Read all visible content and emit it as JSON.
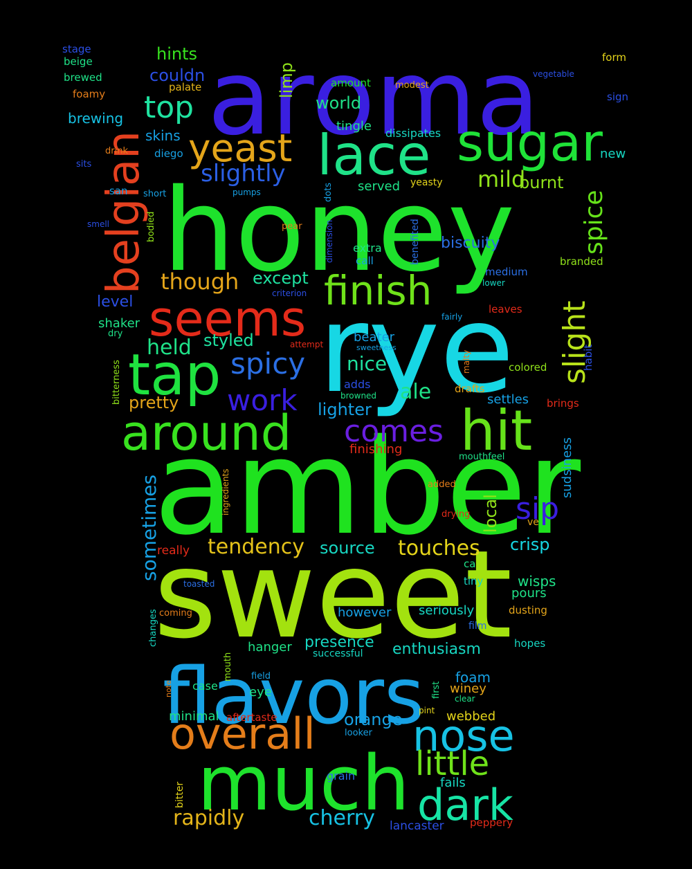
{
  "background": "#000000",
  "words": [
    {
      "text": "aroma",
      "color": "#3a1fe0",
      "weight": 1.0
    },
    {
      "text": "honey",
      "color": "#1ee22c",
      "weight": 1.0
    },
    {
      "text": "rye",
      "color": "#17d7e4",
      "weight": 1.0
    },
    {
      "text": "amber",
      "color": "#1fe21f",
      "weight": 1.0
    },
    {
      "text": "sweet",
      "color": "#a3e20f",
      "weight": 1.0
    },
    {
      "text": "flavors",
      "color": "#17a1e4",
      "weight": 0.7
    },
    {
      "text": "much",
      "color": "#1ee22c",
      "weight": 0.7
    },
    {
      "text": "belgian",
      "color": "#e4401f",
      "weight": 0.5
    },
    {
      "text": "sugar",
      "color": "#1fe238",
      "weight": 0.5
    },
    {
      "text": "lace",
      "color": "#1fe288",
      "weight": 0.5
    },
    {
      "text": "yeast",
      "color": "#e4a51a",
      "weight": 0.45
    },
    {
      "text": "seems",
      "color": "#e42b1a",
      "weight": 0.45
    },
    {
      "text": "tap",
      "color": "#1fe240",
      "weight": 0.45
    },
    {
      "text": "around",
      "color": "#38e21f",
      "weight": 0.45
    },
    {
      "text": "hit",
      "color": "#66e21a",
      "weight": 0.45
    },
    {
      "text": "overall",
      "color": "#e47d1a",
      "weight": 0.45
    },
    {
      "text": "nose",
      "color": "#17c2e4",
      "weight": 0.45
    },
    {
      "text": "dark",
      "color": "#17e4a5",
      "weight": 0.45
    },
    {
      "text": "finish",
      "color": "#6fe21a",
      "weight": 0.35
    },
    {
      "text": "little",
      "color": "#6fe21a",
      "weight": 0.3
    },
    {
      "text": "slight",
      "color": "#b8e21a",
      "weight": 0.3
    },
    {
      "text": "spice",
      "color": "#66e21a",
      "weight": 0.3
    },
    {
      "text": "top",
      "color": "#1fe2a0",
      "weight": 0.3
    },
    {
      "text": "spicy",
      "color": "#2b6fe4",
      "weight": 0.3
    },
    {
      "text": "work",
      "color": "#3a1fe0",
      "weight": 0.3
    },
    {
      "text": "comes",
      "color": "#6a1fe0",
      "weight": 0.3
    },
    {
      "text": "sip",
      "color": "#3a1fe0",
      "weight": 0.3
    },
    {
      "text": "slightly",
      "color": "#2b5fe4",
      "weight": 0.22
    },
    {
      "text": "mild",
      "color": "#90e21a",
      "weight": 0.22
    },
    {
      "text": "though",
      "color": "#e4a51a",
      "weight": 0.22
    },
    {
      "text": "held",
      "color": "#1fe288",
      "weight": 0.2
    },
    {
      "text": "ale",
      "color": "#1fe288",
      "weight": 0.2
    },
    {
      "text": "nice",
      "color": "#1fe2a0",
      "weight": 0.2
    },
    {
      "text": "sometimes",
      "color": "#17a1e4",
      "weight": 0.2
    },
    {
      "text": "tendency",
      "color": "#e4c21a",
      "weight": 0.2
    },
    {
      "text": "touches",
      "color": "#e4d41a",
      "weight": 0.2
    },
    {
      "text": "rapidly",
      "color": "#e4b51a",
      "weight": 0.2
    },
    {
      "text": "cherry",
      "color": "#17c2e4",
      "weight": 0.2
    },
    {
      "text": "hints",
      "color": "#38e21f",
      "weight": 0.17
    },
    {
      "text": "couldn",
      "color": "#2b4fe4",
      "weight": 0.17
    },
    {
      "text": "limp",
      "color": "#90e21a",
      "weight": 0.17
    },
    {
      "text": "world",
      "color": "#1fe288",
      "weight": 0.17
    },
    {
      "text": "burnt",
      "color": "#90e21a",
      "weight": 0.17
    },
    {
      "text": "except",
      "color": "#1fe2a0",
      "weight": 0.17
    },
    {
      "text": "styled",
      "color": "#1fe2a0",
      "weight": 0.17
    },
    {
      "text": "pretty",
      "color": "#e4a51a",
      "weight": 0.17
    },
    {
      "text": "lighter",
      "color": "#17a1e4",
      "weight": 0.17
    },
    {
      "text": "local",
      "color": "#90e21a",
      "weight": 0.17
    },
    {
      "text": "crisp",
      "color": "#17d7e4",
      "weight": 0.17
    },
    {
      "text": "source",
      "color": "#17d7c2",
      "weight": 0.17
    },
    {
      "text": "presence",
      "color": "#17d7c2",
      "weight": 0.17
    },
    {
      "text": "enthusiasm",
      "color": "#17d7c2",
      "weight": 0.17
    },
    {
      "text": "orange",
      "color": "#17a1e4",
      "weight": 0.17
    },
    {
      "text": "level",
      "color": "#2b4fe4",
      "weight": 0.17
    },
    {
      "text": "biscuity",
      "color": "#2b6fe4",
      "weight": 0.15
    },
    {
      "text": "brewing",
      "color": "#17c2e4",
      "weight": 0.14
    },
    {
      "text": "skins",
      "color": "#17a1e4",
      "weight": 0.13
    },
    {
      "text": "served",
      "color": "#1fe288",
      "weight": 0.13
    },
    {
      "text": "shaker",
      "color": "#1fe288",
      "weight": 0.13
    },
    {
      "text": "beater",
      "color": "#17a1e4",
      "weight": 0.13
    },
    {
      "text": "settles",
      "color": "#17a1e4",
      "weight": 0.13
    },
    {
      "text": "finishing",
      "color": "#e42b1a",
      "weight": 0.13
    },
    {
      "text": "sudsiness",
      "color": "#17a1e4",
      "weight": 0.13
    },
    {
      "text": "hanger",
      "color": "#1fe288",
      "weight": 0.13
    },
    {
      "text": "however",
      "color": "#17a1e4",
      "weight": 0.13
    },
    {
      "text": "seriously",
      "color": "#17d7c2",
      "weight": 0.13
    },
    {
      "text": "wisps",
      "color": "#1fe288",
      "weight": 0.13
    },
    {
      "text": "pours",
      "color": "#1fe288",
      "weight": 0.13
    },
    {
      "text": "foam",
      "color": "#17a1e4",
      "weight": 0.13
    },
    {
      "text": "winey",
      "color": "#e4a51a",
      "weight": 0.13
    },
    {
      "text": "webbed",
      "color": "#e4d41a",
      "weight": 0.13
    },
    {
      "text": "minimal",
      "color": "#1fe288",
      "weight": 0.13
    },
    {
      "text": "eye",
      "color": "#1fe288",
      "weight": 0.13
    },
    {
      "text": "case",
      "color": "#1fe288",
      "weight": 0.12
    },
    {
      "text": "stage",
      "color": "#2b4fe4",
      "weight": 0.1
    },
    {
      "text": "beige",
      "color": "#1fe288",
      "weight": 0.1
    },
    {
      "text": "brewed",
      "color": "#1fe288",
      "weight": 0.1
    },
    {
      "text": "foamy",
      "color": "#e47d1a",
      "weight": 0.1
    },
    {
      "text": "palate",
      "color": "#e4b51a",
      "weight": 0.1
    },
    {
      "text": "amount",
      "color": "#1fe22c",
      "weight": 0.1
    },
    {
      "text": "modest",
      "color": "#e4a51a",
      "weight": 0.09
    },
    {
      "text": "form",
      "color": "#e4d41a",
      "weight": 0.1
    },
    {
      "text": "vegetable",
      "color": "#2b4fe4",
      "weight": 0.09
    },
    {
      "text": "sign",
      "color": "#2b4fe4",
      "weight": 0.1
    },
    {
      "text": "tingle",
      "color": "#1fe288",
      "weight": 0.1
    },
    {
      "text": "dissipates",
      "color": "#17d7c2",
      "weight": 0.1
    },
    {
      "text": "new",
      "color": "#17d7c2",
      "weight": 0.1
    },
    {
      "text": "drink",
      "color": "#e47d1a",
      "weight": 0.08
    },
    {
      "text": "diego",
      "color": "#17a1e4",
      "weight": 0.09
    },
    {
      "text": "sits",
      "color": "#2b4fe4",
      "weight": 0.09
    },
    {
      "text": "san",
      "color": "#17a1e4",
      "weight": 0.09
    },
    {
      "text": "short",
      "color": "#17a1e4",
      "weight": 0.08
    },
    {
      "text": "pumps",
      "color": "#17a1e4",
      "weight": 0.08
    },
    {
      "text": "dots",
      "color": "#17a1e4",
      "weight": 0.09
    },
    {
      "text": "yeasty",
      "color": "#e4d41a",
      "weight": 0.09
    },
    {
      "text": "bodied",
      "color": "#90e21a",
      "weight": 0.09
    },
    {
      "text": "smell",
      "color": "#2b4fe4",
      "weight": 0.08
    },
    {
      "text": "pear",
      "color": "#e47d1a",
      "weight": 0.08
    },
    {
      "text": "dimension",
      "color": "#2b4fe4",
      "weight": 0.08
    },
    {
      "text": "benefited",
      "color": "#2b6fe4",
      "weight": 0.09
    },
    {
      "text": "extra",
      "color": "#1fe288",
      "weight": 0.1
    },
    {
      "text": "call",
      "color": "#17a1e4",
      "weight": 0.1
    },
    {
      "text": "branded",
      "color": "#90e21a",
      "weight": 0.1
    },
    {
      "text": "medium",
      "color": "#2b6fe4",
      "weight": 0.1
    },
    {
      "text": "lower",
      "color": "#17d7c2",
      "weight": 0.08
    },
    {
      "text": "criterion",
      "color": "#2b4fe4",
      "weight": 0.08
    },
    {
      "text": "leaves",
      "color": "#e42b1a",
      "weight": 0.1
    },
    {
      "text": "fairly",
      "color": "#17a1e4",
      "weight": 0.08
    },
    {
      "text": "dry",
      "color": "#1fe288",
      "weight": 0.09
    },
    {
      "text": "bitterness",
      "color": "#90e21a",
      "weight": 0.08
    },
    {
      "text": "attempt",
      "color": "#e42b1a",
      "weight": 0.08
    },
    {
      "text": "sweetness",
      "color": "#17a1e4",
      "weight": 0.08
    },
    {
      "text": "malty",
      "color": "#e47d1a",
      "weight": 0.08
    },
    {
      "text": "habit",
      "color": "#2b4fe4",
      "weight": 0.09
    },
    {
      "text": "colored",
      "color": "#90e21a",
      "weight": 0.1
    },
    {
      "text": "adds",
      "color": "#2b4fe4",
      "weight": 0.1
    },
    {
      "text": "browned",
      "color": "#1fe288",
      "weight": 0.08
    },
    {
      "text": "drafts",
      "color": "#e4a51a",
      "weight": 0.1
    },
    {
      "text": "brings",
      "color": "#e42b1a",
      "weight": 0.1
    },
    {
      "text": "mouthfeel",
      "color": "#1fe288",
      "weight": 0.09
    },
    {
      "text": "ingredients",
      "color": "#e4a51a",
      "weight": 0.08
    },
    {
      "text": "added",
      "color": "#e47d1a",
      "weight": 0.08
    },
    {
      "text": "drying",
      "color": "#e42b1a",
      "weight": 0.08
    },
    {
      "text": "ve",
      "color": "#e4a51a",
      "weight": 0.09
    },
    {
      "text": "really",
      "color": "#e42b1a",
      "weight": 0.11
    },
    {
      "text": "ca",
      "color": "#1fe288",
      "weight": 0.09
    },
    {
      "text": "tiny",
      "color": "#17d7c2",
      "weight": 0.1
    },
    {
      "text": "toasted",
      "color": "#2b6fe4",
      "weight": 0.08
    },
    {
      "text": "coming",
      "color": "#e47d1a",
      "weight": 0.08
    },
    {
      "text": "changes",
      "color": "#17d7c2",
      "weight": 0.08
    },
    {
      "text": "dusting",
      "color": "#e4a51a",
      "weight": 0.1
    },
    {
      "text": "film",
      "color": "#2b6fe4",
      "weight": 0.09
    },
    {
      "text": "successful",
      "color": "#17d7c2",
      "weight": 0.09
    },
    {
      "text": "hopes",
      "color": "#17d7c2",
      "weight": 0.09
    },
    {
      "text": "mouth",
      "color": "#90e21a",
      "weight": 0.08
    },
    {
      "text": "field",
      "color": "#17a1e4",
      "weight": 0.08
    },
    {
      "text": "first",
      "color": "#1fe288",
      "weight": 0.08
    },
    {
      "text": "clear",
      "color": "#1fe288",
      "weight": 0.08
    },
    {
      "text": "pint",
      "color": "#e4d41a",
      "weight": 0.08
    },
    {
      "text": "note",
      "color": "#e47d1a",
      "weight": 0.08
    },
    {
      "text": "aftertaste",
      "color": "#e42b1a",
      "weight": 0.1
    },
    {
      "text": "looker",
      "color": "#17a1e4",
      "weight": 0.08
    },
    {
      "text": "grain",
      "color": "#2b6fe4",
      "weight": 0.1
    },
    {
      "text": "fails",
      "color": "#17d7c2",
      "weight": 0.1
    },
    {
      "text": "bitter",
      "color": "#e4d41a",
      "weight": 0.09
    },
    {
      "text": "lancaster",
      "color": "#2b4fe4",
      "weight": 0.1
    },
    {
      "text": "peppery",
      "color": "#e42b1a",
      "weight": 0.09
    }
  ]
}
